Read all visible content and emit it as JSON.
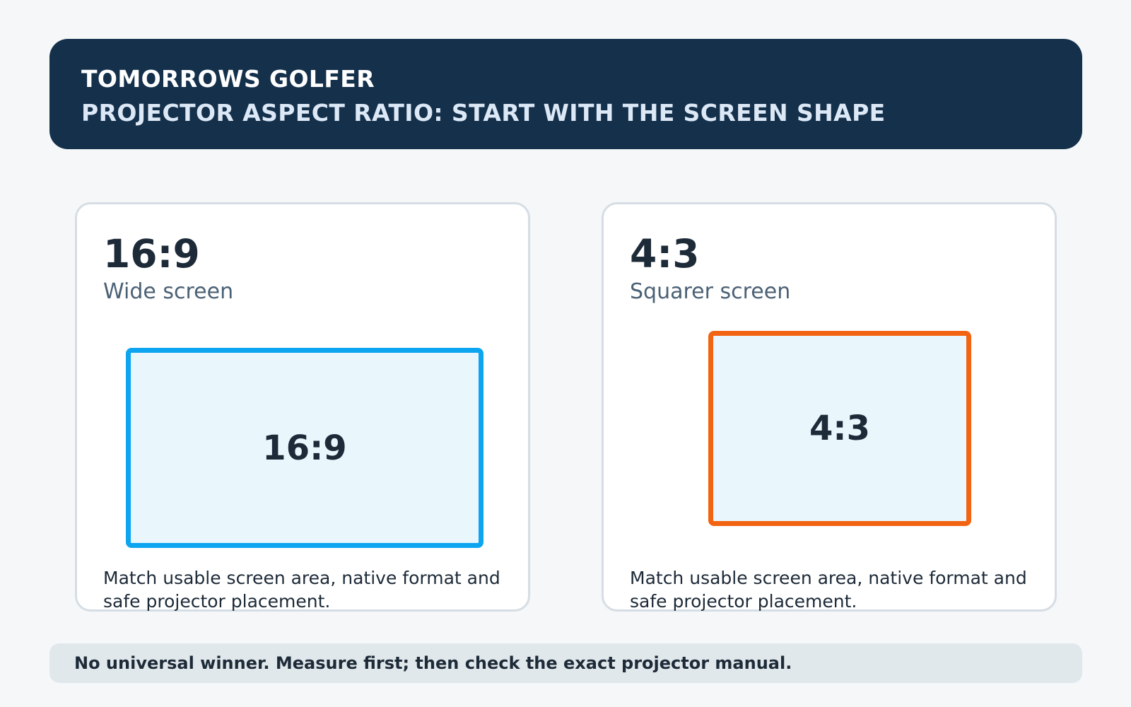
{
  "header": {
    "brand": "TOMORROWS GOLFER",
    "title": "PROJECTOR ASPECT RATIO: START WITH THE SCREEN SHAPE"
  },
  "cards": [
    {
      "ratio": "16:9",
      "description": "Wide screen",
      "screen_label": "16:9",
      "screen_color": "#0ea5f0",
      "note": "Match usable screen area, native format and safe projector placement."
    },
    {
      "ratio": "4:3",
      "description": "Squarer screen",
      "screen_label": "4:3",
      "screen_color": "#f26411",
      "note": "Match usable screen area, native format and safe projector placement."
    }
  ],
  "footer": {
    "text": "No universal winner. Measure first; then check the exact projector manual."
  }
}
